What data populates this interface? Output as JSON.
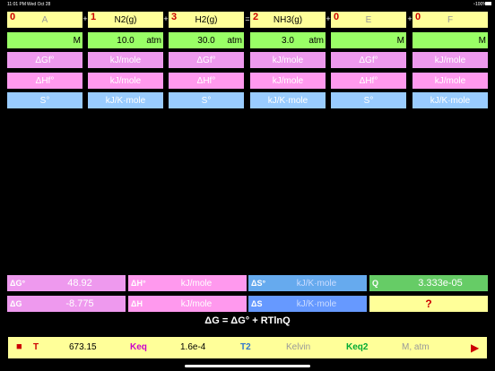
{
  "status": {
    "time": "11:01 PM",
    "date": "Wed Oct 28",
    "battery": "100%"
  },
  "species": [
    {
      "coef": "0",
      "name": "A",
      "name_gray": true,
      "value": "",
      "unit": "M"
    },
    {
      "coef": "1",
      "name": "N2(g)",
      "name_gray": false,
      "value": "10.0",
      "unit": "atm"
    },
    {
      "coef": "3",
      "name": "H2(g)",
      "name_gray": false,
      "value": "30.0",
      "unit": "atm"
    },
    {
      "coef": "2",
      "name": "NH3(g)",
      "name_gray": false,
      "value": "3.0",
      "unit": "atm"
    },
    {
      "coef": "0",
      "name": "E",
      "name_gray": true,
      "value": "",
      "unit": "M"
    },
    {
      "coef": "0",
      "name": "F",
      "name_gray": true,
      "value": "",
      "unit": "M"
    }
  ],
  "operators": [
    "+",
    "+",
    "=",
    "+",
    "+"
  ],
  "thermo_rows": [
    {
      "odd": "ΔGf°",
      "even": "kJ/mole"
    },
    {
      "odd": "ΔHf°",
      "even": "kJ/mole"
    },
    {
      "odd": "S°",
      "even": "kJ/K·mole"
    }
  ],
  "results": {
    "dG0": {
      "label": "ΔG°",
      "value": "48.92"
    },
    "dH0": {
      "label": "ΔH°",
      "value": "kJ/mole"
    },
    "dS0": {
      "label": "ΔS°",
      "value": "kJ/K·mole"
    },
    "Q": {
      "label": "Q",
      "value": "3.333e-05"
    },
    "dG": {
      "label": "ΔG",
      "value": "-8.775"
    },
    "dH": {
      "label": "ΔH",
      "value": "kJ/mole"
    },
    "dS": {
      "label": "ΔS",
      "value": "kJ/K·mole"
    },
    "unknown": {
      "value": "?"
    }
  },
  "equation": "ΔG = ΔG° + RTlnQ",
  "bottom": {
    "stop": "■",
    "T_label": "T",
    "T_value": "673.15",
    "Keq_label": "Keq",
    "Keq_value": "1.6e-4",
    "T2_label": "T2",
    "T2_unit": "Kelvin",
    "Keq2_label": "Keq2",
    "Keq2_unit": "M, atm",
    "play": "▶"
  }
}
